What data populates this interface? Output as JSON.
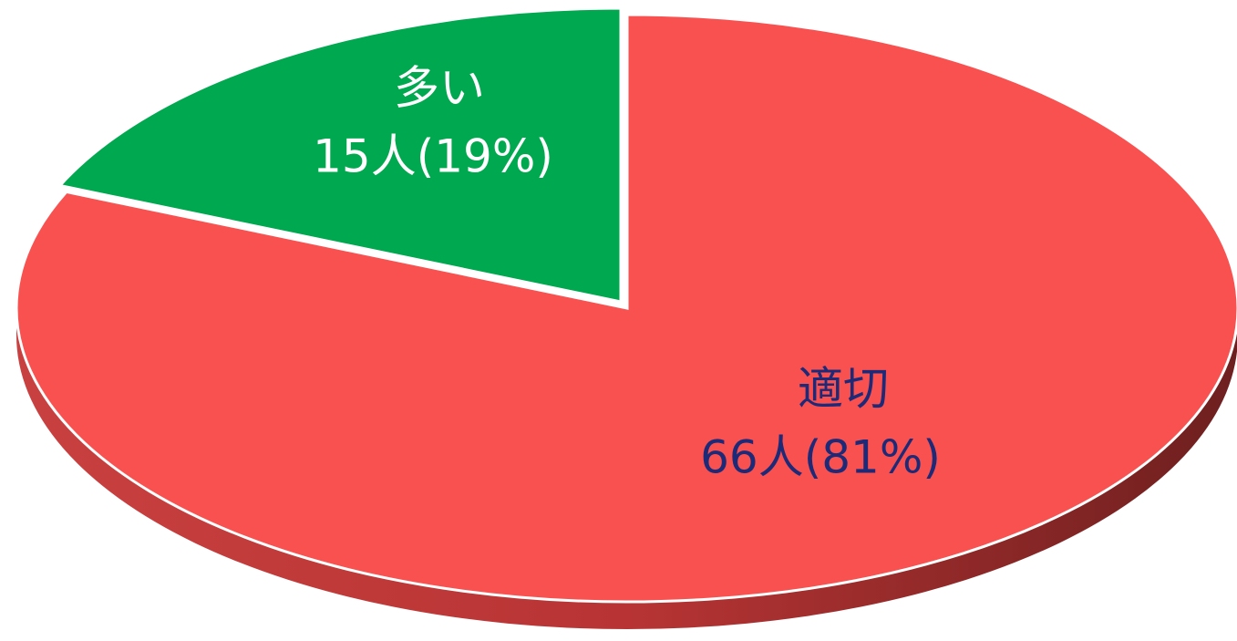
{
  "chart_data": {
    "type": "pie3d",
    "categories": [
      "適切",
      "多い"
    ],
    "values": [
      66,
      15
    ],
    "value_labels": [
      "66人(81%)",
      "15人(19%)"
    ],
    "colors": [
      "#f95050",
      "#00a84f"
    ],
    "label_colors": [
      "#1c2a78",
      "#ffffff"
    ]
  }
}
